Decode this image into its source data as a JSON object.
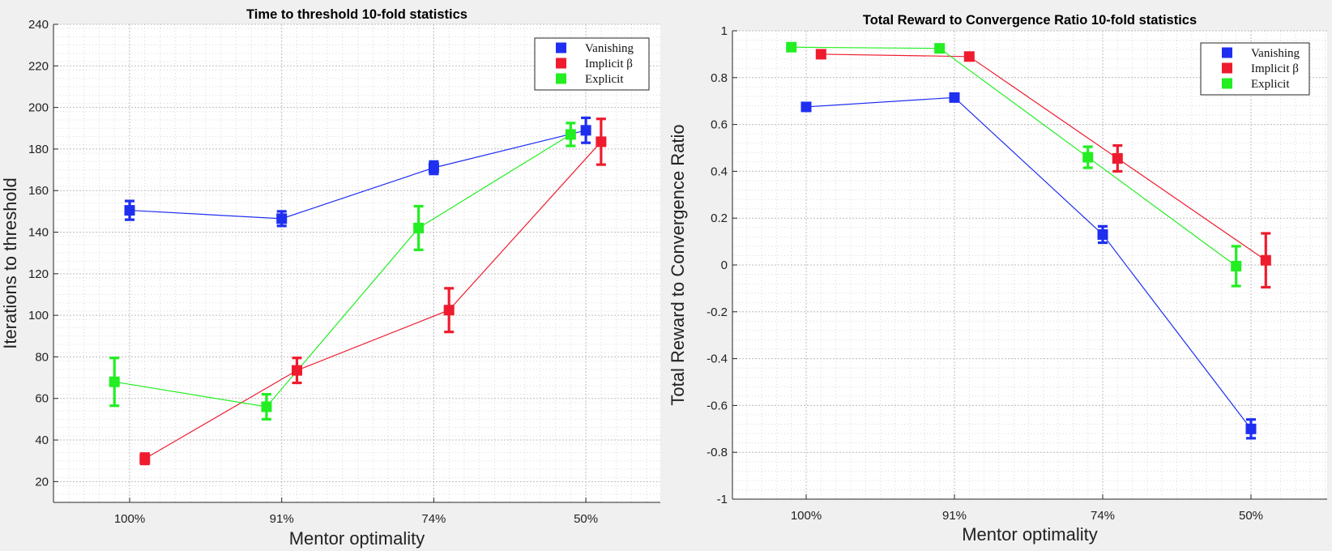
{
  "chart_data": [
    {
      "type": "line",
      "title": "Time to threshold 10-fold statistics",
      "xlabel": "Mentor optimality",
      "ylabel": "Iterations to threshold",
      "categories": [
        "100%",
        "91%",
        "74%",
        "50%"
      ],
      "ylim": [
        10,
        240
      ],
      "yticks": [
        20,
        40,
        60,
        80,
        100,
        120,
        140,
        160,
        180,
        200,
        220,
        240
      ],
      "ytick_labels": [
        "20",
        "40",
        "60",
        "80",
        "100",
        "120",
        "140",
        "160",
        "180",
        "200",
        "220",
        "240"
      ],
      "grid": true,
      "legend_position": "top-right",
      "series": [
        {
          "name": "Vanishing",
          "color": "#1f2ff0",
          "offset": 0.0,
          "values": [
            150.5,
            146.5,
            171,
            189
          ],
          "errors": [
            4.5,
            3.5,
            3,
            6
          ]
        },
        {
          "name": "Implicit β",
          "color": "#ee1c2e",
          "offset": 0.1,
          "values": [
            31,
            73.5,
            102.5,
            183.5
          ],
          "errors": [
            2.5,
            6,
            10.5,
            11
          ]
        },
        {
          "name": "Explicit",
          "color": "#22ee22",
          "offset": -0.1,
          "values": [
            68,
            56,
            142,
            187
          ],
          "errors": [
            11.5,
            6,
            10.5,
            5.5
          ]
        }
      ]
    },
    {
      "type": "line",
      "title": "Total Reward to Convergence Ratio 10-fold statistics",
      "xlabel": "Mentor optimality",
      "ylabel": "Total Reward to Convergence Ratio",
      "categories": [
        "100%",
        "91%",
        "74%",
        "50%"
      ],
      "ylim": [
        -1,
        1
      ],
      "yticks": [
        -1,
        -0.8,
        -0.6,
        -0.4,
        -0.2,
        0,
        0.2,
        0.4,
        0.6,
        0.8,
        1
      ],
      "ytick_labels": [
        "-1",
        "-0.8",
        "-0.6",
        "-0.4",
        "-0.2",
        "0",
        "0.2",
        "0.4",
        "0.6",
        "0.8",
        "1"
      ],
      "grid": true,
      "legend_position": "top-right",
      "series": [
        {
          "name": "Vanishing",
          "color": "#1f2ff0",
          "offset": 0.0,
          "values": [
            0.675,
            0.715,
            0.13,
            -0.7
          ],
          "errors": [
            0,
            0,
            0.035,
            0.04
          ]
        },
        {
          "name": "Implicit β",
          "color": "#ee1c2e",
          "offset": 0.1,
          "values": [
            0.9,
            0.89,
            0.455,
            0.02
          ],
          "errors": [
            0,
            0,
            0.055,
            0.115
          ]
        },
        {
          "name": "Explicit",
          "color": "#22ee22",
          "offset": -0.1,
          "values": [
            0.93,
            0.925,
            0.46,
            -0.005
          ],
          "errors": [
            0,
            0,
            0.045,
            0.085
          ]
        }
      ]
    }
  ]
}
